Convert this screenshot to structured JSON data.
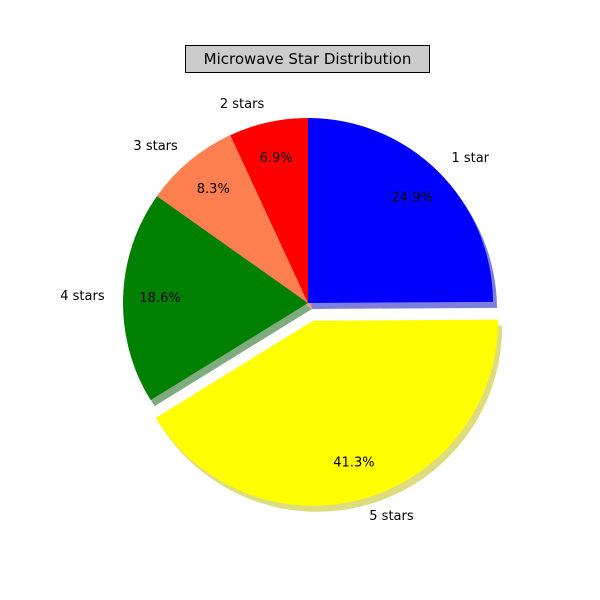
{
  "chart_data": {
    "type": "pie",
    "title": "Microwave Star Distribution",
    "start_angle_deg": 90,
    "direction": "clockwise",
    "shadow": true,
    "slices": [
      {
        "label": "1 star",
        "value": 24.9,
        "pct_label": "24.9%",
        "color": "#0000ff",
        "explode": false
      },
      {
        "label": "5 stars",
        "value": 41.3,
        "pct_label": "41.3%",
        "color": "#ffff00",
        "explode": true
      },
      {
        "label": "4 stars",
        "value": 18.6,
        "pct_label": "18.6%",
        "color": "#008000",
        "explode": false
      },
      {
        "label": "3 stars",
        "value": 8.3,
        "pct_label": "8.3%",
        "color": "#ff7f50",
        "explode": false
      },
      {
        "label": "2 stars",
        "value": 6.9,
        "pct_label": "6.9%",
        "color": "#ff0000",
        "explode": false
      }
    ]
  }
}
